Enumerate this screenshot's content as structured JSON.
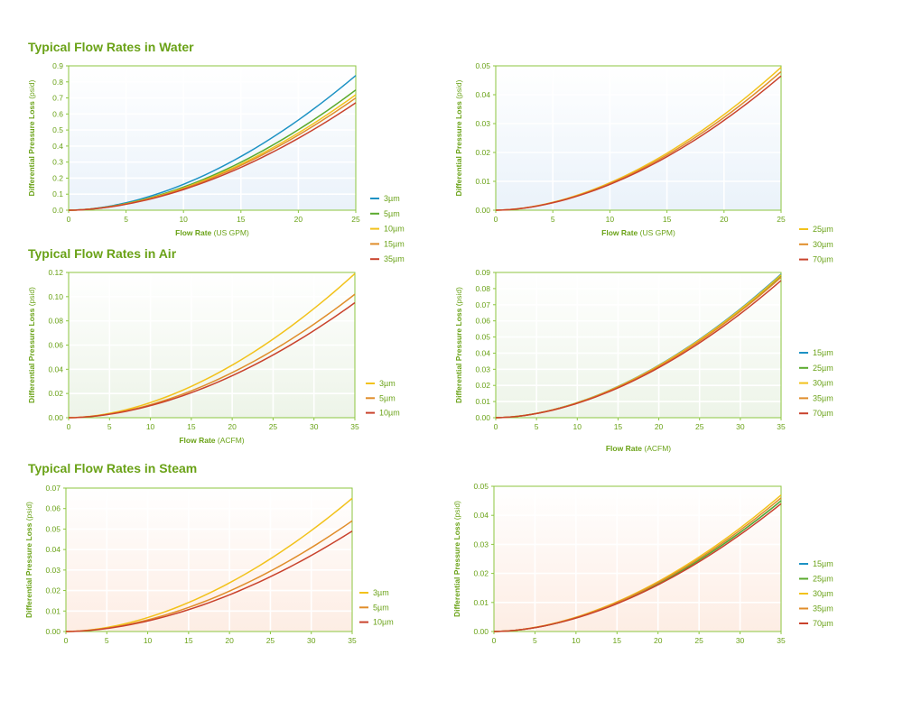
{
  "sections": {
    "water": "Typical Flow Rates in Water",
    "air": "Typical Flow Rates in Air",
    "steam": "Typical Flow Rates in Steam"
  },
  "colors": {
    "axis": "#8cc63f",
    "text": "#6aa217",
    "water_bg": "#eaf2fa",
    "air_bg": "#edf4e8",
    "steam_bg": "#fdede4",
    "3µm": "#1d92c4",
    "5µm": "#5aaa2d",
    "10µm": "#f2c21b",
    "15µm": "#e08d2a",
    "35µm": "#c9422c"
  },
  "chart_data": [
    {
      "id": "water-left",
      "type": "line",
      "bg": "#eaf2fa",
      "xlabel": "Flow Rate",
      "xunit": "(US GPM)",
      "ylabel": "Differential Pressure Loss",
      "yunit": "(psid)",
      "xlim": [
        0,
        25
      ],
      "ylim": [
        0,
        0.9
      ],
      "xticks": [
        0,
        5,
        10,
        15,
        20,
        25
      ],
      "yticks": [
        0,
        0.1,
        0.2,
        0.3,
        0.4,
        0.5,
        0.6,
        0.7,
        0.8,
        0.9
      ],
      "ydecimals": 1,
      "grid": true,
      "series": [
        {
          "name": "3µm",
          "color": "#1d92c4",
          "end": 0.84
        },
        {
          "name": "5µm",
          "color": "#5aaa2d",
          "end": 0.75
        },
        {
          "name": "10µm",
          "color": "#f2c21b",
          "end": 0.72
        },
        {
          "name": "15µm",
          "color": "#e08d2a",
          "end": 0.7
        },
        {
          "name": "35µm",
          "color": "#c9422c",
          "end": 0.67
        }
      ]
    },
    {
      "id": "water-right",
      "type": "line",
      "bg": "#eaf2fa",
      "xlabel": "Flow Rate",
      "xunit": "(US GPM)",
      "ylabel": "Differential Pressure Loss",
      "yunit": "(psid)",
      "xlim": [
        0,
        25
      ],
      "ylim": [
        0,
        0.05
      ],
      "xticks": [
        0,
        5,
        10,
        15,
        20,
        25
      ],
      "yticks": [
        0,
        0.01,
        0.02,
        0.03,
        0.04,
        0.05
      ],
      "ydecimals": 2,
      "grid": true,
      "series": [
        {
          "name": "25µm",
          "color": "#f2c21b",
          "end": 0.0495
        },
        {
          "name": "30µm",
          "color": "#e08d2a",
          "end": 0.048
        },
        {
          "name": "70µm",
          "color": "#c9422c",
          "end": 0.0465
        }
      ]
    },
    {
      "id": "air-left",
      "type": "line",
      "bg": "#edf4e8",
      "xlabel": "Flow Rate",
      "xunit": "(ACFM)",
      "ylabel": "Differential Pressure Loss",
      "yunit": "(psid)",
      "xlim": [
        0,
        35
      ],
      "ylim": [
        0,
        0.12
      ],
      "xticks": [
        0,
        5,
        10,
        15,
        20,
        25,
        30,
        35
      ],
      "yticks": [
        0,
        0.02,
        0.04,
        0.06,
        0.08,
        0.1,
        0.12
      ],
      "ydecimals": 2,
      "grid": true,
      "series": [
        {
          "name": "3µm",
          "color": "#f2c21b",
          "end": 0.119
        },
        {
          "name": "5µm",
          "color": "#e08d2a",
          "end": 0.102
        },
        {
          "name": "10µm",
          "color": "#c9422c",
          "end": 0.095
        }
      ]
    },
    {
      "id": "air-right",
      "type": "line",
      "bg": "#edf4e8",
      "xlabel": "Flow Rate",
      "xunit": "(ACFM)",
      "ylabel": "Differential Pressure Loss",
      "yunit": "(psid)",
      "xlim": [
        0,
        35
      ],
      "ylim": [
        0,
        0.09
      ],
      "xticks": [
        0,
        5,
        10,
        15,
        20,
        25,
        30,
        35
      ],
      "yticks": [
        0,
        0.01,
        0.02,
        0.03,
        0.04,
        0.05,
        0.06,
        0.07,
        0.08,
        0.09
      ],
      "ydecimals": 2,
      "grid": true,
      "series": [
        {
          "name": "15µm",
          "color": "#1d92c4",
          "end": 0.089
        },
        {
          "name": "25µm",
          "color": "#5aaa2d",
          "end": 0.088
        },
        {
          "name": "30µm",
          "color": "#f2c21b",
          "end": 0.0885
        },
        {
          "name": "35µm",
          "color": "#e08d2a",
          "end": 0.087
        },
        {
          "name": "70µm",
          "color": "#c9422c",
          "end": 0.085
        }
      ]
    },
    {
      "id": "steam-left",
      "type": "line",
      "bg": "#fdede4",
      "xlabel": "",
      "xunit": "",
      "ylabel": "Differential Pressure Loss",
      "yunit": "(psid)",
      "xlim": [
        0,
        35
      ],
      "ylim": [
        0,
        0.07
      ],
      "xticks": [
        0,
        5,
        10,
        15,
        20,
        25,
        30,
        35
      ],
      "yticks": [
        0,
        0.01,
        0.02,
        0.03,
        0.04,
        0.05,
        0.06,
        0.07
      ],
      "ydecimals": 2,
      "grid": true,
      "series": [
        {
          "name": "3µm",
          "color": "#f2c21b",
          "end": 0.065
        },
        {
          "name": "5µm",
          "color": "#e08d2a",
          "end": 0.054
        },
        {
          "name": "10µm",
          "color": "#c9422c",
          "end": 0.049
        }
      ]
    },
    {
      "id": "steam-right",
      "type": "line",
      "bg": "#fdede4",
      "xlabel": "",
      "xunit": "",
      "ylabel": "Differential Pressure Loss",
      "yunit": "(psid)",
      "xlim": [
        0,
        35
      ],
      "ylim": [
        0,
        0.05
      ],
      "xticks": [
        0,
        5,
        10,
        15,
        20,
        25,
        30,
        35
      ],
      "yticks": [
        0,
        0.01,
        0.02,
        0.03,
        0.04,
        0.05
      ],
      "ydecimals": 2,
      "grid": true,
      "series": [
        {
          "name": "15µm",
          "color": "#1d92c4",
          "end": 0.045
        },
        {
          "name": "25µm",
          "color": "#5aaa2d",
          "end": 0.045
        },
        {
          "name": "30µm",
          "color": "#f2c21b",
          "end": 0.047
        },
        {
          "name": "35µm",
          "color": "#e08d2a",
          "end": 0.046
        },
        {
          "name": "70µm",
          "color": "#c9422c",
          "end": 0.044
        }
      ]
    }
  ]
}
